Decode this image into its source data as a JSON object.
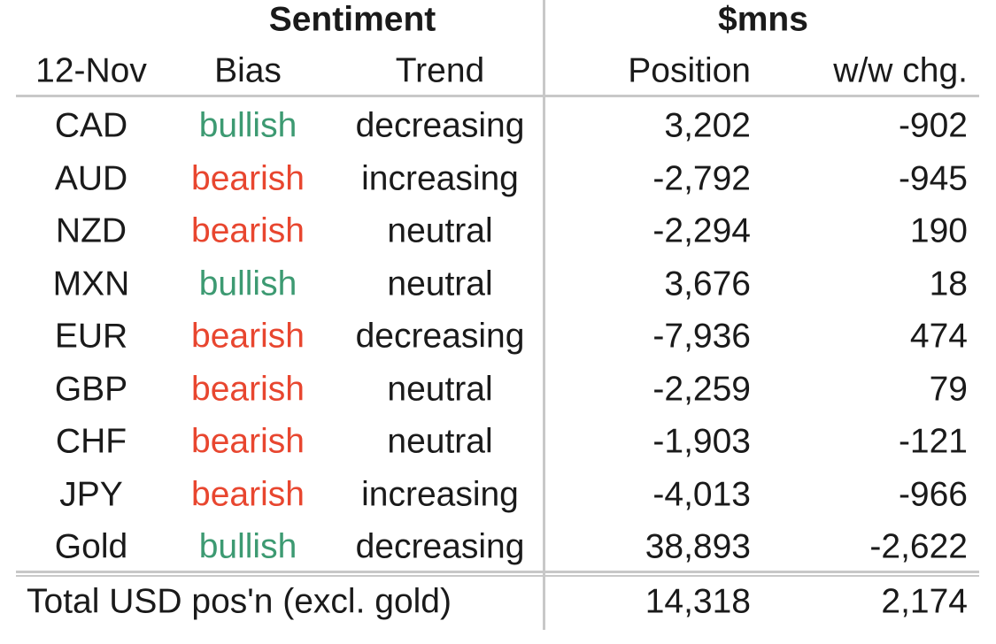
{
  "table": {
    "group_headers": [
      "Sentiment",
      "$mns"
    ],
    "columns": [
      "12-Nov",
      "Bias",
      "Trend",
      "Position",
      "w/w chg."
    ],
    "rows": [
      [
        "CAD",
        "bullish",
        "decreasing",
        "3,202",
        "-902"
      ],
      [
        "AUD",
        "bearish",
        "increasing",
        "-2,792",
        "-945"
      ],
      [
        "NZD",
        "bearish",
        "neutral",
        "-2,294",
        "190"
      ],
      [
        "MXN",
        "bullish",
        "neutral",
        "3,676",
        "18"
      ],
      [
        "EUR",
        "bearish",
        "decreasing",
        "-7,936",
        "474"
      ],
      [
        "GBP",
        "bearish",
        "neutral",
        "-2,259",
        "79"
      ],
      [
        "CHF",
        "bearish",
        "neutral",
        "-1,903",
        "-121"
      ],
      [
        "JPY",
        "bearish",
        "increasing",
        "-4,013",
        "-966"
      ],
      [
        "Gold",
        "bullish",
        "decreasing",
        "38,893",
        "-2,622"
      ]
    ],
    "bias_colors": [
      "#3d9a72",
      "#e8462f",
      "#e8462f",
      "#3d9a72",
      "#e8462f",
      "#e8462f",
      "#e8462f",
      "#e8462f",
      "#3d9a72"
    ],
    "total": [
      "Total USD pos'n (excl. gold)",
      "14,318",
      "2,174"
    ]
  }
}
